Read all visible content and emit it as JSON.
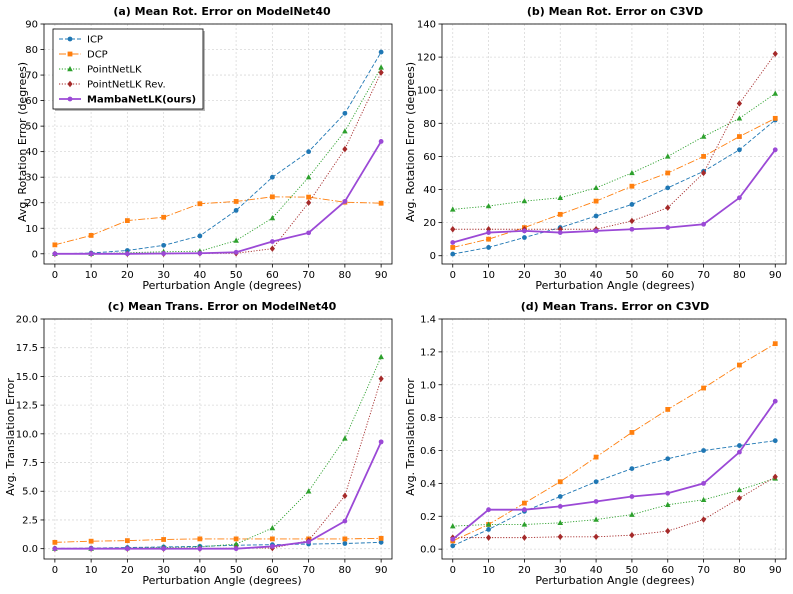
{
  "chart_data": [
    {
      "type": "line",
      "title": "(a) Mean Rot. Error on ModelNet40",
      "xlabel": "Perturbation Angle (degrees)",
      "ylabel": "Avg. Rotation Error (degrees)",
      "x": [
        0,
        10,
        20,
        30,
        40,
        50,
        60,
        70,
        80,
        90
      ],
      "xticks": [
        "0",
        "10",
        "20",
        "30",
        "40",
        "50",
        "60",
        "70",
        "80",
        "90"
      ],
      "ylim": [
        -4,
        90
      ],
      "yticks": [
        0,
        10,
        20,
        30,
        40,
        50,
        60,
        70,
        80,
        90
      ],
      "ytick_labels": [
        "0",
        "10",
        "20",
        "30",
        "40",
        "50",
        "60",
        "70",
        "80",
        "90"
      ],
      "grid": true,
      "legend": "top-left",
      "series": [
        {
          "name": "ICP",
          "values": [
            0,
            0.3,
            1.3,
            3.3,
            7,
            17,
            30,
            40,
            55,
            79
          ]
        },
        {
          "name": "DCP",
          "values": [
            3.5,
            7.2,
            13,
            14.3,
            19.6,
            20.5,
            22.3,
            22.2,
            20.2,
            19.8
          ]
        },
        {
          "name": "PointNetLK",
          "values": [
            0,
            0,
            0.4,
            0.8,
            1,
            5.2,
            14,
            30,
            48,
            73
          ]
        },
        {
          "name": "PointNetLK Rev.",
          "values": [
            0,
            0,
            0,
            0,
            0.2,
            0.2,
            2,
            20,
            41,
            71
          ]
        },
        {
          "name": "MambaNetLK(ours)",
          "values": [
            0,
            0,
            0,
            0.1,
            0.2,
            0.6,
            4.8,
            8.2,
            20.5,
            44
          ]
        }
      ]
    },
    {
      "type": "line",
      "title": "(b) Mean Rot. Error on C3VD",
      "xlabel": "Perturbation Angle (degrees)",
      "ylabel": "Avg. Rotation Error (degrees)",
      "x": [
        0,
        10,
        20,
        30,
        40,
        50,
        60,
        70,
        80,
        90
      ],
      "xticks": [
        "0",
        "10",
        "20",
        "30",
        "40",
        "50",
        "60",
        "70",
        "80",
        "90"
      ],
      "ylim": [
        -5,
        140
      ],
      "yticks": [
        0,
        20,
        40,
        60,
        80,
        100,
        120,
        140
      ],
      "ytick_labels": [
        "0",
        "20",
        "40",
        "60",
        "80",
        "100",
        "120",
        "140"
      ],
      "grid": true,
      "series": [
        {
          "name": "ICP",
          "values": [
            1,
            5,
            11,
            17,
            24,
            31,
            41,
            51,
            64,
            82
          ]
        },
        {
          "name": "DCP",
          "values": [
            5,
            10,
            17,
            25,
            33,
            42,
            50,
            60,
            72,
            83
          ]
        },
        {
          "name": "PointNetLK",
          "values": [
            28,
            30,
            33,
            35,
            41,
            50,
            60,
            72,
            83,
            98
          ]
        },
        {
          "name": "PointNetLK Rev.",
          "values": [
            16,
            16,
            16,
            16,
            16,
            21,
            29,
            50,
            92,
            122
          ]
        },
        {
          "name": "MambaNetLK(ours)",
          "values": [
            8,
            14,
            15,
            14,
            15,
            16,
            17,
            19,
            35,
            64
          ]
        }
      ]
    },
    {
      "type": "line",
      "title": "(c) Mean Trans. Error on ModelNet40",
      "xlabel": "Perturbation Angle (degrees)",
      "ylabel": "Avg. Translation Error",
      "x": [
        0,
        10,
        20,
        30,
        40,
        50,
        60,
        70,
        80,
        90
      ],
      "xticks": [
        "0",
        "10",
        "20",
        "30",
        "40",
        "50",
        "60",
        "70",
        "80",
        "90"
      ],
      "ylim": [
        -0.9,
        20
      ],
      "yticks": [
        0,
        2.5,
        5,
        7.5,
        10,
        12.5,
        15,
        17.5,
        20
      ],
      "ytick_labels": [
        "0.0",
        "2.5",
        "5.0",
        "7.5",
        "10.0",
        "12.5",
        "15.0",
        "17.5",
        "20.0"
      ],
      "grid": true,
      "series": [
        {
          "name": "ICP",
          "values": [
            0.02,
            0.05,
            0.1,
            0.15,
            0.2,
            0.3,
            0.35,
            0.4,
            0.45,
            0.55
          ]
        },
        {
          "name": "DCP",
          "values": [
            0.55,
            0.65,
            0.7,
            0.8,
            0.85,
            0.85,
            0.85,
            0.85,
            0.85,
            0.9
          ]
        },
        {
          "name": "PointNetLK",
          "values": [
            0,
            0,
            0.05,
            0.1,
            0.15,
            0.4,
            1.8,
            5,
            9.6,
            16.7
          ]
        },
        {
          "name": "PointNetLK Rev.",
          "values": [
            0,
            0,
            0,
            0,
            0,
            0.05,
            0.05,
            0.7,
            4.6,
            14.8
          ]
        },
        {
          "name": "MambaNetLK(ours)",
          "values": [
            0,
            0,
            0,
            0,
            0,
            0,
            0.2,
            0.6,
            2.4,
            9.3
          ]
        }
      ]
    },
    {
      "type": "line",
      "title": "(d) Mean Trans. Error on C3VD",
      "xlabel": "Perturbation Angle (degrees)",
      "ylabel": "Avg. Translation Error",
      "x": [
        0,
        10,
        20,
        30,
        40,
        50,
        60,
        70,
        80,
        90
      ],
      "xticks": [
        "0",
        "10",
        "20",
        "30",
        "40",
        "50",
        "60",
        "70",
        "80",
        "90"
      ],
      "ylim": [
        -0.06,
        1.4
      ],
      "yticks": [
        0,
        0.2,
        0.4,
        0.6,
        0.8,
        1.0,
        1.2,
        1.4
      ],
      "ytick_labels": [
        "0.0",
        "0.2",
        "0.4",
        "0.6",
        "0.8",
        "1.0",
        "1.2",
        "1.4"
      ],
      "grid": true,
      "series": [
        {
          "name": "ICP",
          "values": [
            0.02,
            0.12,
            0.23,
            0.32,
            0.41,
            0.49,
            0.55,
            0.6,
            0.63,
            0.66
          ]
        },
        {
          "name": "DCP",
          "values": [
            0.05,
            0.15,
            0.28,
            0.41,
            0.56,
            0.71,
            0.85,
            0.98,
            1.12,
            1.25
          ]
        },
        {
          "name": "PointNetLK",
          "values": [
            0.14,
            0.15,
            0.15,
            0.16,
            0.18,
            0.21,
            0.27,
            0.3,
            0.36,
            0.43
          ]
        },
        {
          "name": "PointNetLK Rev.",
          "values": [
            0.07,
            0.07,
            0.07,
            0.075,
            0.075,
            0.085,
            0.11,
            0.18,
            0.31,
            0.44
          ]
        },
        {
          "name": "MambaNetLK(ours)",
          "values": [
            0.06,
            0.24,
            0.24,
            0.26,
            0.29,
            0.32,
            0.34,
            0.4,
            0.59,
            0.9
          ]
        }
      ]
    }
  ],
  "legend": {
    "entries": [
      "ICP",
      "DCP",
      "PointNetLK",
      "PointNetLK Rev.",
      "MambaNetLK(ours)"
    ]
  },
  "styles": {
    "ICP": {
      "color": "#1f77b4",
      "marker": "circle",
      "dash": "4,2"
    },
    "DCP": {
      "color": "#ff7f0e",
      "marker": "square",
      "dash": "7,2,1.5,2"
    },
    "PointNetLK": {
      "color": "#2ca02c",
      "marker": "triangle",
      "dash": "1.2,1.6"
    },
    "PointNetLK Rev.": {
      "color": "#a52a2a",
      "marker": "diamond",
      "dash": "1.2,1.6"
    },
    "MambaNetLK(ours)": {
      "color": "#9b49d6",
      "marker": "circle",
      "dash": ""
    }
  }
}
